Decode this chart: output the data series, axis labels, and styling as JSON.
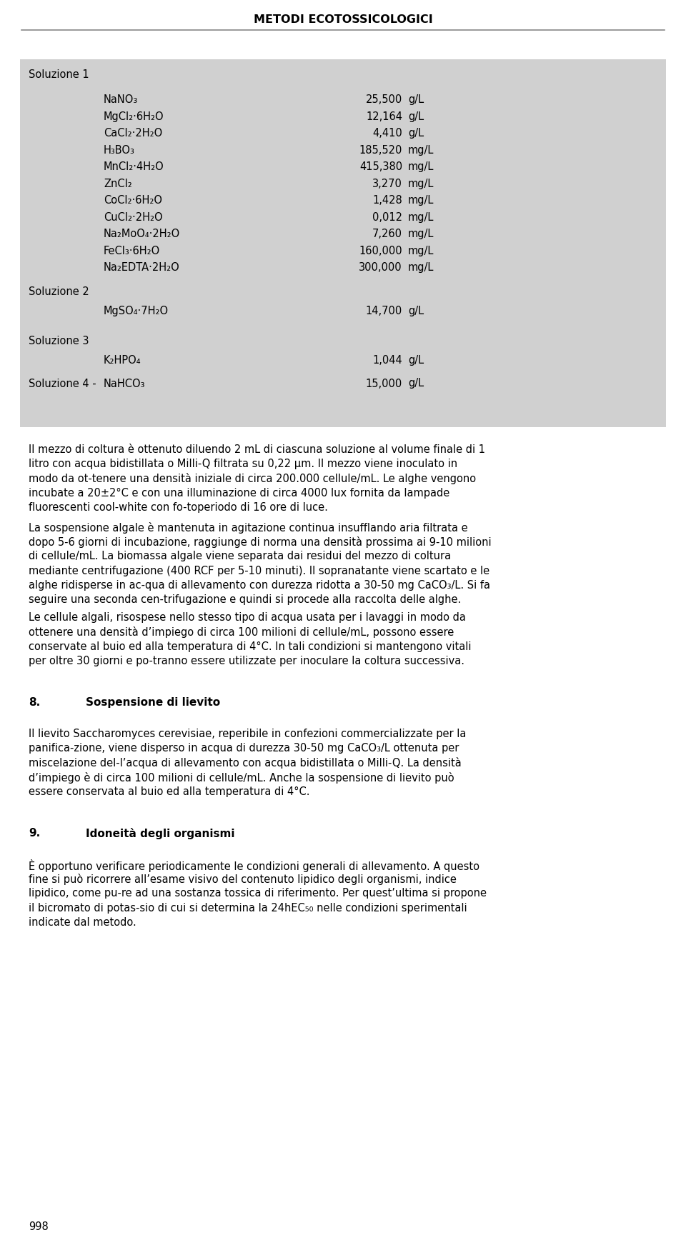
{
  "header": "METODI ECOTOSSICOLOGICI",
  "white_bg": "#ffffff",
  "table_bg": "#d0d0d0",
  "header_line_color": "#888888",
  "soluzione1_label": "Soluzione 1",
  "soluzione2_label": "Soluzione 2",
  "soluzione3_label": "Soluzione 3",
  "soluzione4_label": "Soluzione 4 -",
  "sol4_compound": "NaHCO₃",
  "sol4_value": "15,000",
  "sol4_unit": "g/L",
  "sol1_compounds": [
    "NaNO₃",
    "MgCl₂·6H₂O",
    "CaCl₂·2H₂O",
    "H₃BO₃",
    "MnCl₂·4H₂O",
    "ZnCl₂",
    "CoCl₂·6H₂O",
    "CuCl₂·2H₂O",
    "Na₂MoO₄·2H₂O",
    "FeCl₃·6H₂O",
    "Na₂EDTA·2H₂O"
  ],
  "sol1_values": [
    "25,500",
    "12,164",
    "4,410",
    "185,520",
    "415,380",
    "3,270",
    "1,428",
    "0,012",
    "7,260",
    "160,000",
    "300,000"
  ],
  "sol1_units": [
    "g/L",
    "g/L",
    "g/L",
    "mg/L",
    "mg/L",
    "mg/L",
    "mg/L",
    "mg/L",
    "mg/L",
    "mg/L",
    "mg/L"
  ],
  "sol2_compound": "MgSO₄·7H₂O",
  "sol2_value": "14,700",
  "sol2_unit": "g/L",
  "sol3_compound": "K₂HPO₄",
  "sol3_value": "1,044",
  "sol3_unit": "g/L",
  "paragraph1": "Il mezzo di coltura è ottenuto diluendo 2 mL di ciascuna soluzione al volume finale di 1 litro con acqua bidistillata o Milli-Q filtrata su 0,22 μm. Il mezzo viene inoculato in modo da ot-tenere una densità iniziale di circa 200.000 cellule/mL. Le alghe vengono incubate a 20±2°C e con una illuminazione di circa 4000 lux fornita da lampade fluorescenti cool-white con fo-toperiodo di 16 ore di luce.",
  "paragraph2": "La sospensione algale è mantenuta in agitazione continua insufflando aria filtrata e dopo 5-6 giorni di incubazione, raggiunge di norma una densità prossima ai 9-10 milioni di cellule/mL. La biomassa algale viene separata dai residui del mezzo di coltura mediante centrifugazione (400 RCF per 5-10 minuti). Il sopranatante viene scartato e le alghe ridisperse in ac-qua di allevamento con durezza ridotta a 30-50 mg CaCO₃/L. Si fa seguire una seconda cen-trifugazione e quindi si procede alla raccolta delle alghe.",
  "paragraph3": "Le cellule algali, risospese nello stesso tipo di acqua usata per i lavaggi in modo da ottenere una densità d’impiego di circa 100 milioni di cellule/mL, possono essere conservate al buio ed alla temperatura di 4°C. In tali condizioni si mantengono vitali per oltre 30 giorni e po-tranno essere utilizzate per inoculare la coltura successiva.",
  "section8_num": "8.",
  "section8_title": "Sospensione di lievito",
  "paragraph4_before": "Il lievito ",
  "paragraph4_italic": "Saccharomyces cerevisiae",
  "paragraph4_after": ", reperibile in confezioni commercializzate per la panifica-zione, viene disperso in acqua di durezza 30-50 mg CaCO₃/L ottenuta per miscelazione del-l’acqua di allevamento con acqua bidistillata o Milli-Q. La densità d’impiego è di circa 100 milioni di cellule/mL. Anche la sospensione di lievito può essere conservata al buio ed alla temperatura di 4°C.",
  "section9_num": "9.",
  "section9_title": "Idoneità degli organismi",
  "paragraph5": "È opportuno verificare periodicamente le condizioni generali di allevamento. A questo fine si può ricorrere all’esame visivo del contenuto lipidico degli organismi, indice lipidico, come pu-re ad una sostanza tossica di riferimento. Per quest’ultima si propone il bicromato di potas-sio di cui si determina la 24hEC₅₀ nelle condizioni sperimentali indicate dal metodo.",
  "page_num": "998"
}
